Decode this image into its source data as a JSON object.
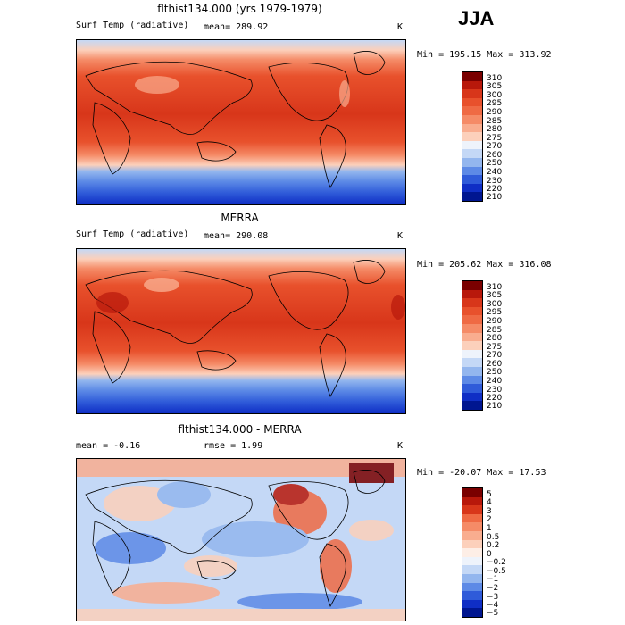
{
  "season": "JJA",
  "panels": [
    {
      "title": "flthist134.000 (yrs 1979-1979)",
      "left_label": "Surf Temp (radiative)",
      "stat": "mean= 289.92",
      "units": "K",
      "minmax": "Min = 195.15 Max = 313.92",
      "levels": [
        "310",
        "305",
        "300",
        "295",
        "290",
        "285",
        "280",
        "275",
        "270",
        "260",
        "250",
        "240",
        "230",
        "220",
        "210"
      ],
      "colors": [
        "#7a0000",
        "#b8180b",
        "#d8361a",
        "#e8512c",
        "#ef6a44",
        "#f58b67",
        "#f9ad8f",
        "#fcd0bb",
        "#eef3fb",
        "#c4d8f6",
        "#93b6ee",
        "#5d8ae6",
        "#2f5bd9",
        "#0f2ec5",
        "#001690"
      ]
    },
    {
      "title": "MERRA",
      "left_label": "Surf Temp (radiative)",
      "stat": "mean= 290.08",
      "units": "K",
      "minmax": "Min = 205.62 Max = 316.08",
      "levels": [
        "310",
        "305",
        "300",
        "295",
        "290",
        "285",
        "280",
        "275",
        "270",
        "260",
        "250",
        "240",
        "230",
        "220",
        "210"
      ],
      "colors": [
        "#7a0000",
        "#b8180b",
        "#d8361a",
        "#e8512c",
        "#ef6a44",
        "#f58b67",
        "#f9ad8f",
        "#fcd0bb",
        "#eef3fb",
        "#c4d8f6",
        "#93b6ee",
        "#5d8ae6",
        "#2f5bd9",
        "#0f2ec5",
        "#001690"
      ]
    },
    {
      "title": "flthist134.000 - MERRA",
      "left_label": "mean =  -0.16",
      "stat": "rmse =   1.99",
      "units": "K",
      "minmax": "Min = -20.07 Max =  17.53",
      "levels": [
        "5",
        "4",
        "3",
        "2",
        "1",
        "0.5",
        "0.2",
        "0",
        "−0.2",
        "−0.5",
        "−1",
        "−2",
        "−3",
        "−4",
        "−5"
      ],
      "colors": [
        "#7a0000",
        "#b8180b",
        "#d8361a",
        "#ef6a44",
        "#f58b67",
        "#f9ad8f",
        "#fcd0bb",
        "#fdeee6",
        "#eef3fb",
        "#c4d8f6",
        "#93b6ee",
        "#5d8ae6",
        "#2f5bd9",
        "#0f2ec5",
        "#001690"
      ]
    }
  ]
}
